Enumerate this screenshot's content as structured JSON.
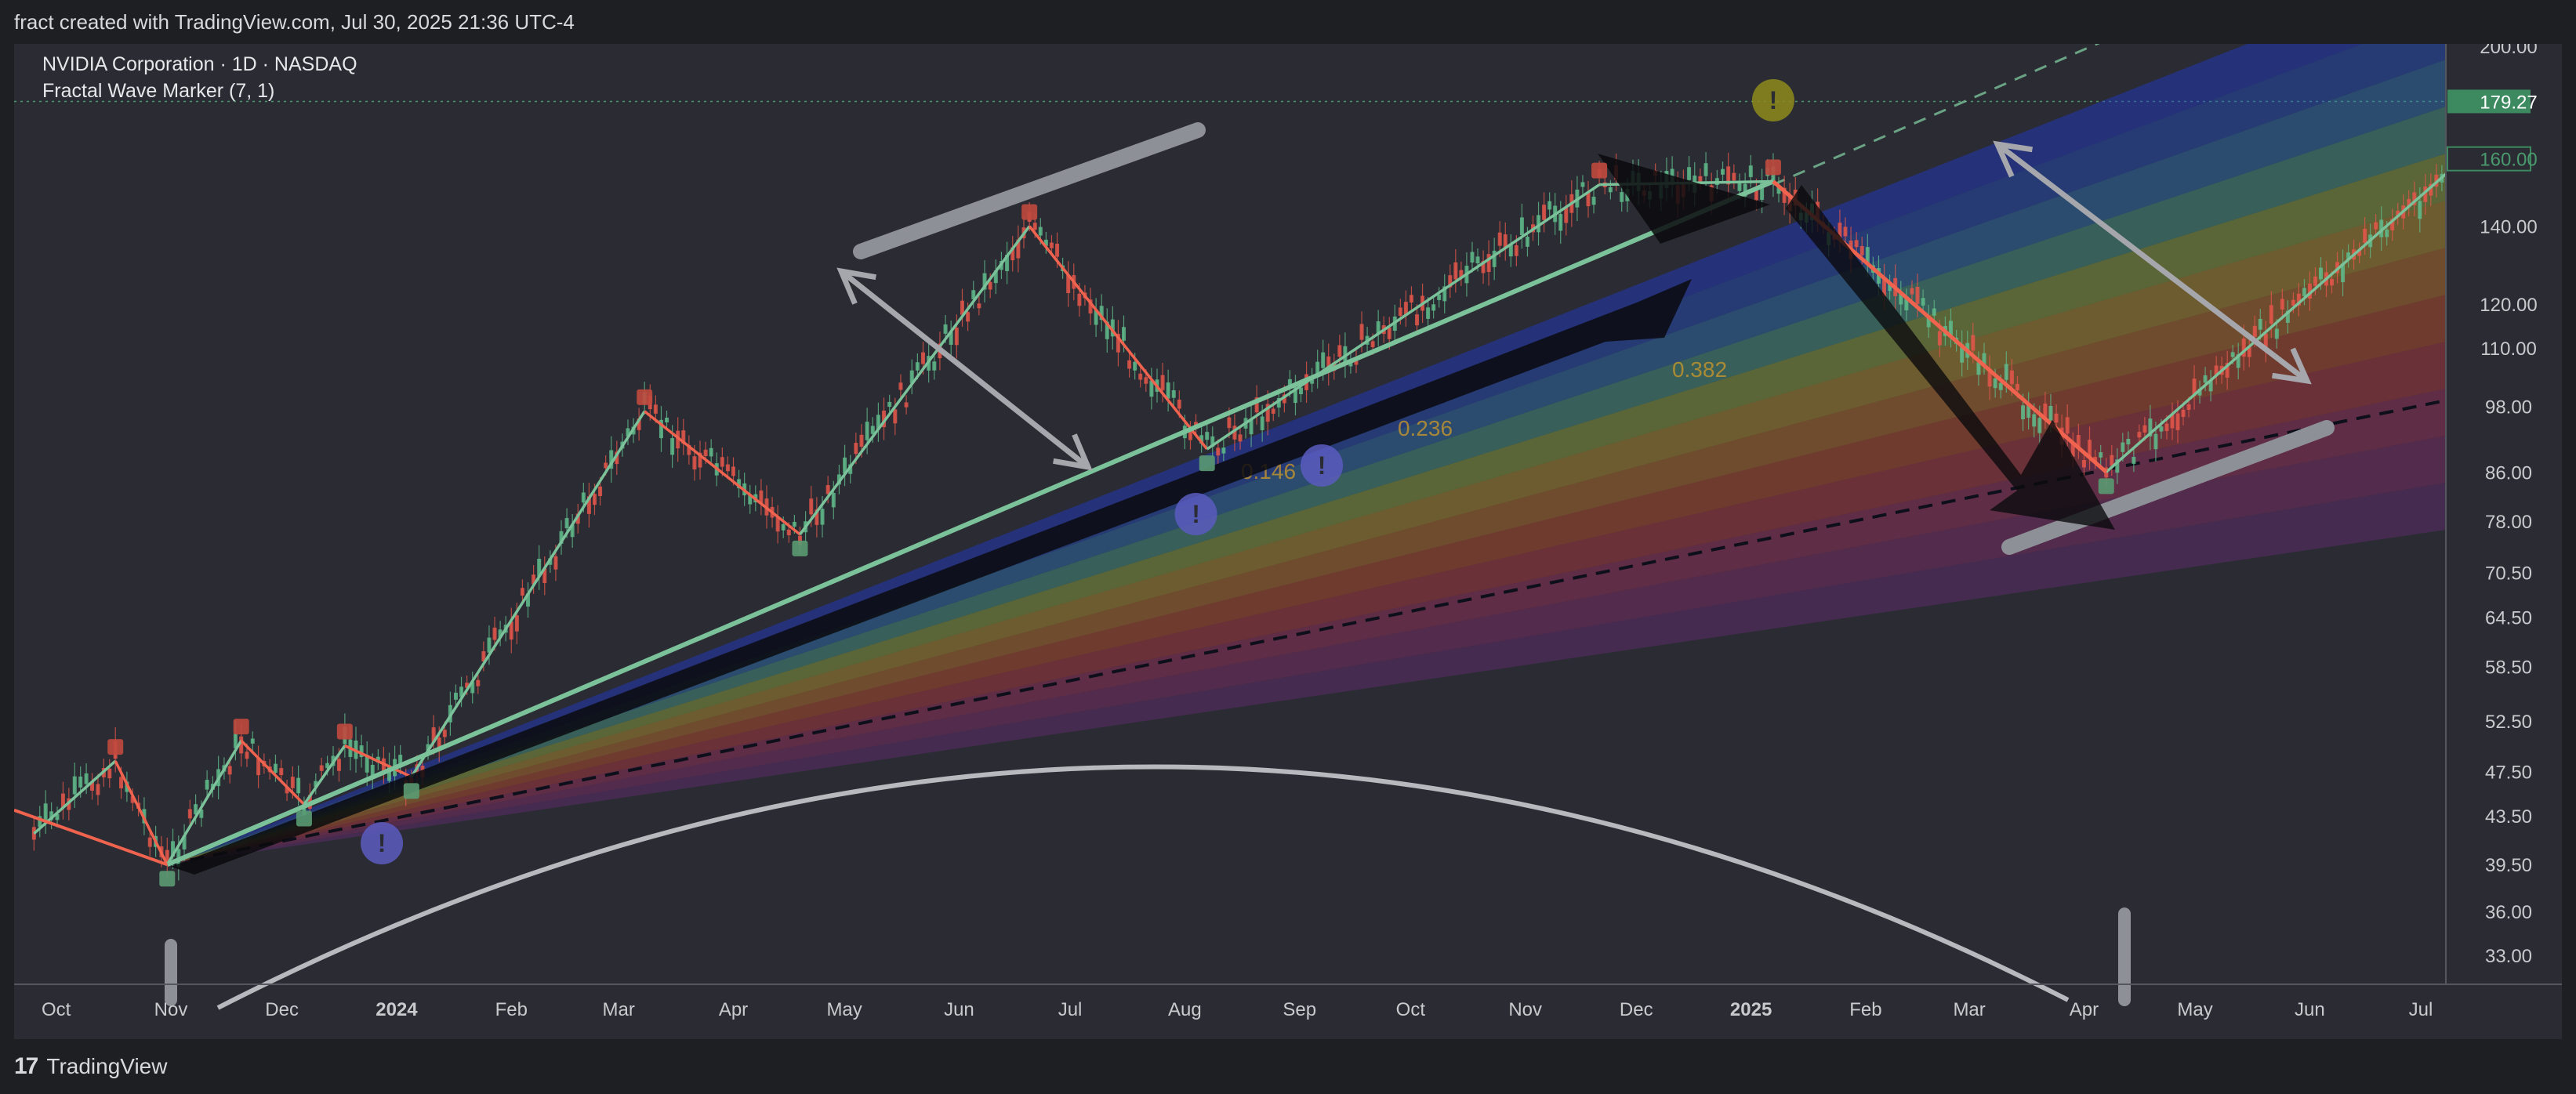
{
  "header": {
    "caption": "fract created with TradingView.com, Jul 30, 2025 21:36 UTC-4"
  },
  "legend": {
    "symbol": "NVIDIA Corporation · 1D · NASDAQ",
    "indicator": "Fractal Wave Marker (7, 1)"
  },
  "footer": {
    "brand": "TradingView"
  },
  "colors": {
    "background": "#2b2c33",
    "up_wave": "#7bc19a",
    "down_wave": "#f0634f",
    "price_badge_current": "#4a9a6e",
    "marker_purple": "#5a5cc0",
    "marker_olive": "#8e8a1c"
  },
  "chart_data": {
    "type": "line",
    "title": "NVIDIA Corporation · 1D · NASDAQ",
    "y_scale": "log",
    "ylim": [
      31,
      205
    ],
    "x_ticks": [
      "Oct",
      "Nov",
      "Dec",
      "2024",
      "Feb",
      "Mar",
      "Apr",
      "May",
      "Jun",
      "Jul",
      "Aug",
      "Sep",
      "Oct",
      "Nov",
      "Dec",
      "2025",
      "Feb",
      "Mar",
      "Apr",
      "May",
      "Jun",
      "Jul"
    ],
    "y_ticks": [
      "200.00",
      "140.00",
      "120.00",
      "110.00",
      "98.00",
      "86.00",
      "78.00",
      "70.50",
      "64.50",
      "58.50",
      "52.50",
      "47.50",
      "43.50",
      "39.50",
      "36.00",
      "33.00"
    ],
    "price_labels": {
      "high": "179.27",
      "current": "160.00"
    },
    "fib_labels": [
      "0.146",
      "0.236",
      "0.382"
    ],
    "series": [
      {
        "name": "Fractal Wave Marker",
        "x": [
          "2023-09-25",
          "2023-10-17",
          "2023-10-31",
          "2023-11-20",
          "2023-12-07",
          "2023-12-18",
          "2024-01-05",
          "2024-03-08",
          "2024-04-19",
          "2024-06-20",
          "2024-08-07",
          "2024-11-21",
          "2025-01-07",
          "2025-04-07",
          "2025-07-29"
        ],
        "values": [
          42.0,
          48.5,
          39.5,
          50.5,
          44.5,
          50.0,
          47.0,
          97.0,
          76.0,
          140.0,
          90.0,
          152.0,
          153.0,
          86.0,
          178.0
        ]
      }
    ]
  }
}
